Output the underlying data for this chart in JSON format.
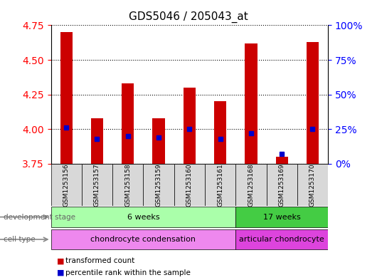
{
  "title": "GDS5046 / 205043_at",
  "samples": [
    "GSM1253156",
    "GSM1253157",
    "GSM1253158",
    "GSM1253159",
    "GSM1253160",
    "GSM1253161",
    "GSM1253168",
    "GSM1253169",
    "GSM1253170"
  ],
  "transformed_counts": [
    4.7,
    4.08,
    4.33,
    4.08,
    4.3,
    4.2,
    4.62,
    3.8,
    4.63
  ],
  "percentile_ranks": [
    26,
    18,
    20,
    19,
    25,
    18,
    22,
    7,
    25
  ],
  "y_min": 3.75,
  "y_max": 4.75,
  "y_ticks_left": [
    3.75,
    4.0,
    4.25,
    4.5,
    4.75
  ],
  "y_ticks_right": [
    0,
    25,
    50,
    75,
    100
  ],
  "bar_color": "#cc0000",
  "dot_color": "#0000cc",
  "development_stage_groups": [
    {
      "label": "6 weeks",
      "start": 0,
      "end": 6,
      "color": "#aaffaa"
    },
    {
      "label": "17 weeks",
      "start": 6,
      "end": 9,
      "color": "#44cc44"
    }
  ],
  "cell_type_groups": [
    {
      "label": "chondrocyte condensation",
      "start": 0,
      "end": 6,
      "color": "#ee88ee"
    },
    {
      "label": "articular chondrocyte",
      "start": 6,
      "end": 9,
      "color": "#dd44dd"
    }
  ],
  "legend_items": [
    {
      "color": "#cc0000",
      "label": "transformed count"
    },
    {
      "color": "#0000cc",
      "label": "percentile rank within the sample"
    }
  ],
  "bar_width": 0.4,
  "dot_size": 5
}
